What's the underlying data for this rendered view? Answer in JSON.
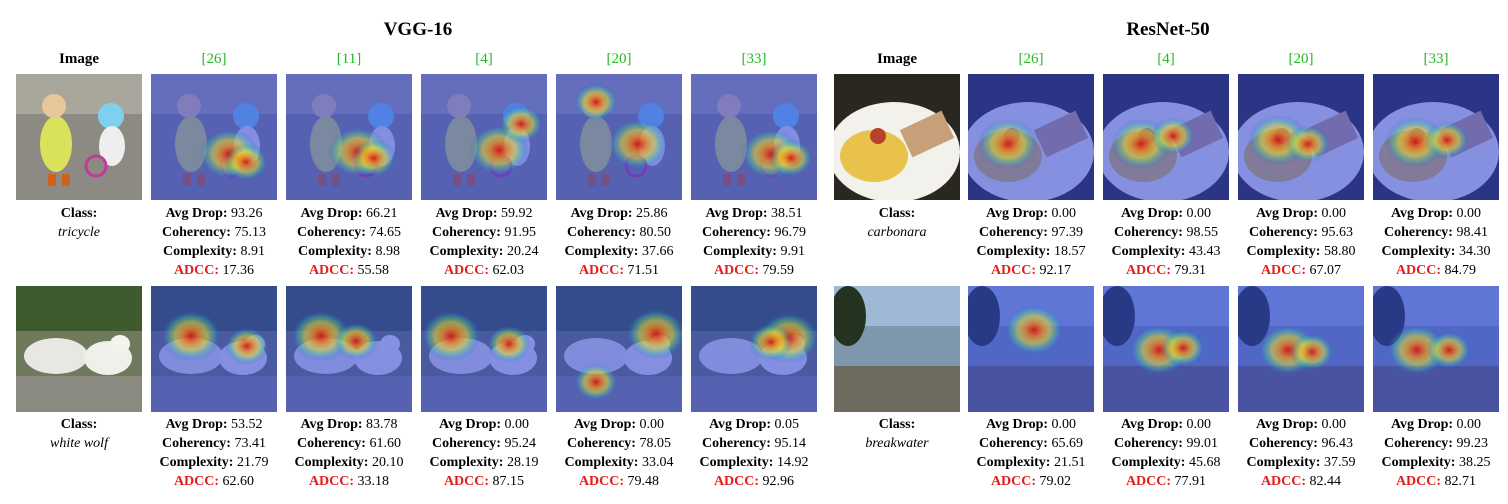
{
  "groups": [
    {
      "title": "VGG-16",
      "image_header": "Image",
      "methods": [
        "[26]",
        "[11]",
        "[4]",
        "[20]",
        "[33]"
      ],
      "rows": [
        {
          "class_label": "Class:",
          "class_name": "tricycle",
          "image_subject": "child-tricycle-photo",
          "results": [
            {
              "avg_drop": "93.26",
              "coherency": "75.13",
              "complexity": "8.91",
              "adcc": "17.36"
            },
            {
              "avg_drop": "66.21",
              "coherency": "74.65",
              "complexity": "8.98",
              "adcc": "55.58"
            },
            {
              "avg_drop": "59.92",
              "coherency": "91.95",
              "complexity": "20.24",
              "adcc": "62.03"
            },
            {
              "avg_drop": "25.86",
              "coherency": "80.50",
              "complexity": "37.66",
              "adcc": "71.51"
            },
            {
              "avg_drop": "38.51",
              "coherency": "96.79",
              "complexity": "9.91",
              "adcc": "79.59"
            }
          ]
        },
        {
          "class_label": "Class:",
          "class_name": "white wolf",
          "image_subject": "white-wolves-photo",
          "results": [
            {
              "avg_drop": "53.52",
              "coherency": "73.41",
              "complexity": "21.79",
              "adcc": "62.60"
            },
            {
              "avg_drop": "83.78",
              "coherency": "61.60",
              "complexity": "20.10",
              "adcc": "33.18"
            },
            {
              "avg_drop": "0.00",
              "coherency": "95.24",
              "complexity": "28.19",
              "adcc": "87.15"
            },
            {
              "avg_drop": "0.00",
              "coherency": "78.05",
              "complexity": "33.04",
              "adcc": "79.48"
            },
            {
              "avg_drop": "0.05",
              "coherency": "95.14",
              "complexity": "14.92",
              "adcc": "92.96"
            }
          ]
        }
      ]
    },
    {
      "title": "ResNet-50",
      "image_header": "Image",
      "methods": [
        "[26]",
        "[4]",
        "[20]",
        "[33]"
      ],
      "rows": [
        {
          "class_label": "Class:",
          "class_name": "carbonara",
          "image_subject": "carbonara-plate-photo",
          "results": [
            {
              "avg_drop": "0.00",
              "coherency": "97.39",
              "complexity": "18.57",
              "adcc": "92.17"
            },
            {
              "avg_drop": "0.00",
              "coherency": "98.55",
              "complexity": "43.43",
              "adcc": "79.31"
            },
            {
              "avg_drop": "0.00",
              "coherency": "95.63",
              "complexity": "58.80",
              "adcc": "67.07"
            },
            {
              "avg_drop": "0.00",
              "coherency": "98.41",
              "complexity": "34.30",
              "adcc": "84.79"
            }
          ]
        },
        {
          "class_label": "Class:",
          "class_name": "breakwater",
          "image_subject": "breakwater-shore-photo",
          "results": [
            {
              "avg_drop": "0.00",
              "coherency": "65.69",
              "complexity": "21.51",
              "adcc": "79.02"
            },
            {
              "avg_drop": "0.00",
              "coherency": "99.01",
              "complexity": "45.68",
              "adcc": "77.91"
            },
            {
              "avg_drop": "0.00",
              "coherency": "96.43",
              "complexity": "37.59",
              "adcc": "82.44"
            },
            {
              "avg_drop": "0.00",
              "coherency": "99.23",
              "complexity": "38.25",
              "adcc": "82.71"
            }
          ]
        }
      ]
    }
  ],
  "metric_labels": {
    "avg_drop": "Avg Drop:",
    "coherency": "Coherency:",
    "complexity": "Complexity:",
    "adcc": "ADCC:"
  },
  "colors": {
    "citation": "#22bb22",
    "adcc": "#e51c1c"
  }
}
